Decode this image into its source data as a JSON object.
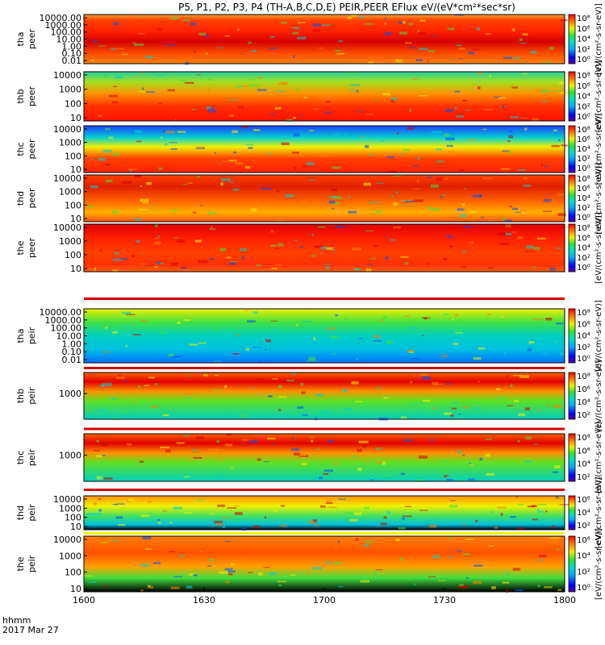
{
  "title": "P5, P1, P2, P3, P4 (TH-A,B,C,D,E) PEIR,PEER EFlux eV/(eV*cm²*sec*sr)",
  "footer": {
    "label_hhmm": "hhmm",
    "date": "2017 Mar 27"
  },
  "colors": {
    "accent_red": "#d40000",
    "band_yellow": "#f0f000",
    "band_cyan": "#00dcdc",
    "band_blue": "#0050ff"
  },
  "chart_data": {
    "type": "heatmap",
    "x_ticks": [
      "1600",
      "1630",
      "1700",
      "1730",
      "1800"
    ],
    "x_range": [
      "1600",
      "1800"
    ],
    "panels": [
      {
        "id": "tha-peer",
        "label_line1": "tha",
        "label_line2": "peer",
        "y_ticks": [
          "10000.00",
          "1000.00",
          "100.00",
          "10.00",
          "1.00",
          "0.10",
          "0.01"
        ],
        "cbar_ticks": [
          "10⁸",
          "10⁶",
          "10⁴",
          "10²",
          "10⁰"
        ],
        "cbar_label": "[eV/(cm²-s-sr-eV)]"
      },
      {
        "id": "thb-peer",
        "label_line1": "thb",
        "label_line2": "peer",
        "y_ticks": [
          "10000",
          "1000",
          "100",
          "10"
        ],
        "cbar_ticks": [
          "10⁸",
          "10⁶",
          "10⁴",
          "10²",
          "10⁰"
        ],
        "cbar_label": "[eV/(cm²-s-sr-eV)]"
      },
      {
        "id": "thc-peer",
        "label_line1": "thc",
        "label_line2": "peer",
        "y_ticks": [
          "10000",
          "1000",
          "100",
          "10"
        ],
        "cbar_ticks": [
          "10⁸",
          "10⁶",
          "10⁴",
          "10²",
          "10⁰"
        ],
        "cbar_label": "[eV/(cm²-s-sr-eV)]"
      },
      {
        "id": "thd-peer",
        "label_line1": "thd",
        "label_line2": "peer",
        "y_ticks": [
          "10000",
          "1000",
          "100",
          "10"
        ],
        "cbar_ticks": [
          "10⁸",
          "10⁶",
          "10⁴",
          "10²",
          "10⁰"
        ],
        "cbar_label": "[eV/(cm²-s-sr-eV)]"
      },
      {
        "id": "the-peer",
        "label_line1": "the",
        "label_line2": "peer",
        "y_ticks": [
          "10000",
          "1000",
          "100",
          "10"
        ],
        "cbar_ticks": [
          "10⁸",
          "10⁶",
          "10⁴",
          "10²",
          "10⁰"
        ],
        "cbar_label": "[eV/(cm²-s-sr-eV)]"
      },
      {
        "id": "tha-peir",
        "label_line1": "tha",
        "label_line2": "peir",
        "y_ticks": [
          "10000.00",
          "1000.00",
          "100.00",
          "10.00",
          "1.00",
          "0.10",
          "0.01"
        ],
        "cbar_ticks": [
          "10⁸",
          "10⁶",
          "10⁴",
          "10²",
          "10⁰"
        ],
        "cbar_label": "[eV/(cm²-s-sr-eV)]"
      },
      {
        "id": "thb-peir",
        "label_line1": "thb",
        "label_line2": "peir",
        "y_ticks": [
          "1000"
        ],
        "cbar_ticks": [
          "10⁸",
          "10⁶",
          "10⁴",
          "10²"
        ],
        "cbar_label": "[eV/(cm²-s-sr-eV)]"
      },
      {
        "id": "thc-peir",
        "label_line1": "thc",
        "label_line2": "peir",
        "y_ticks": [
          "1000"
        ],
        "cbar_ticks": [
          "10⁸",
          "10⁶",
          "10⁴",
          "10²"
        ],
        "cbar_label": "[eV/(cm²-s-sr-eV)]"
      },
      {
        "id": "thd-peir",
        "label_line1": "thd",
        "label_line2": "peir",
        "y_ticks": [
          "10000",
          "1000",
          "100",
          "10"
        ],
        "cbar_ticks": [
          "10⁶",
          "10⁴",
          "10²"
        ],
        "cbar_label": "[eV/(cm²-s-sr-eV)]"
      },
      {
        "id": "the-peir",
        "label_line1": "the",
        "label_line2": "peir",
        "y_ticks": [
          "10000",
          "1000",
          "100",
          "10"
        ],
        "cbar_ticks": [
          "10⁶",
          "10⁴",
          "10²",
          "10⁰"
        ],
        "cbar_label": "[eV/(cm²-s-sr-eV)]"
      }
    ]
  }
}
